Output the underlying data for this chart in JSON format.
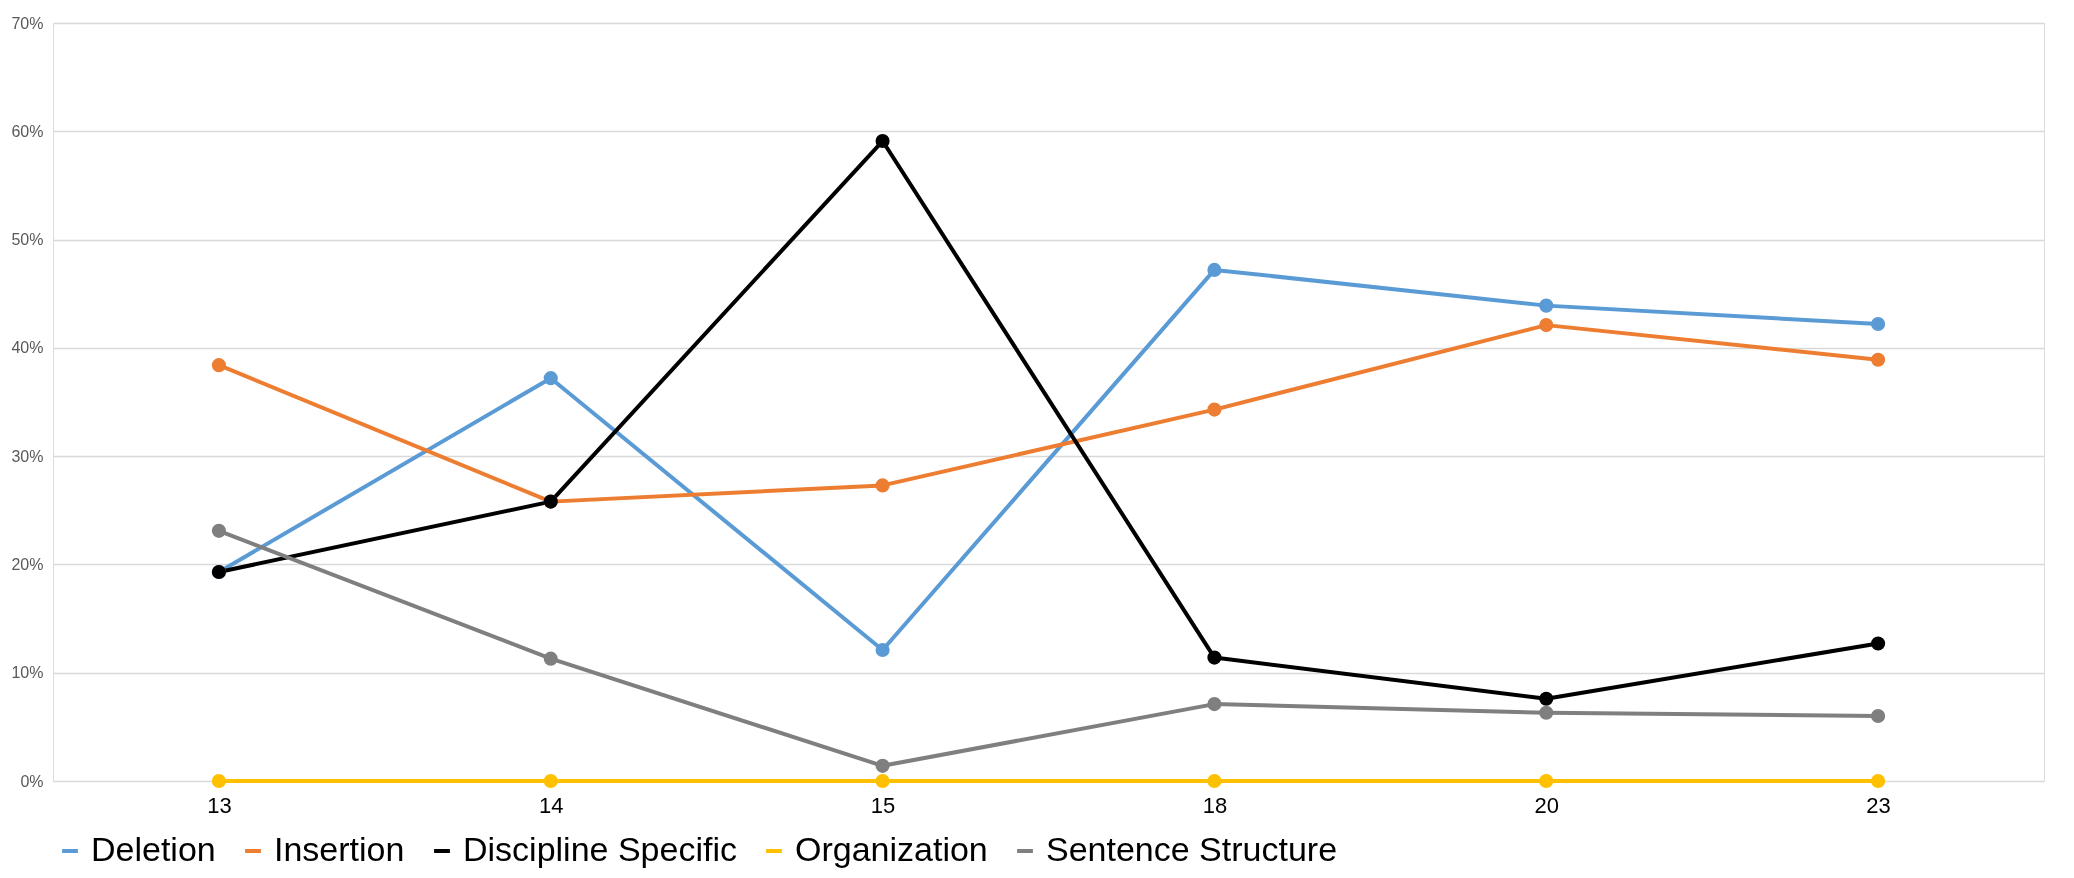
{
  "chart_data": {
    "type": "line",
    "categories": [
      "13",
      "14",
      "15",
      "18",
      "20",
      "23"
    ],
    "series": [
      {
        "name": "Deletion",
        "color": "#5b9bd5",
        "values": [
          19.3,
          37.2,
          12.1,
          47.2,
          43.9,
          42.2
        ]
      },
      {
        "name": "Insertion",
        "color": "#ed7d31",
        "values": [
          38.4,
          25.8,
          27.3,
          34.3,
          42.1,
          38.9
        ]
      },
      {
        "name": "Discipline Specific",
        "color": "#000000",
        "values": [
          19.3,
          25.8,
          59.1,
          11.4,
          7.6,
          12.7
        ]
      },
      {
        "name": "Organization",
        "color": "#ffc000",
        "values": [
          0,
          0,
          0,
          0,
          0,
          0
        ]
      },
      {
        "name": "Sentence Structure",
        "color": "#7f7f7f",
        "values": [
          23.1,
          11.3,
          1.4,
          7.1,
          6.3,
          6.0
        ]
      }
    ],
    "ylim": [
      0,
      70
    ],
    "yticks": [
      {
        "value": 0,
        "label": "0%"
      },
      {
        "value": 10,
        "label": "10%"
      },
      {
        "value": 20,
        "label": "20%"
      },
      {
        "value": 30,
        "label": "30%"
      },
      {
        "value": 40,
        "label": "40%"
      },
      {
        "value": 50,
        "label": "50%"
      },
      {
        "value": 60,
        "label": "60%"
      },
      {
        "value": 70,
        "label": "70%"
      }
    ],
    "grid": "y",
    "legend": "bottom",
    "marker": "circle",
    "line_style": "solid"
  }
}
